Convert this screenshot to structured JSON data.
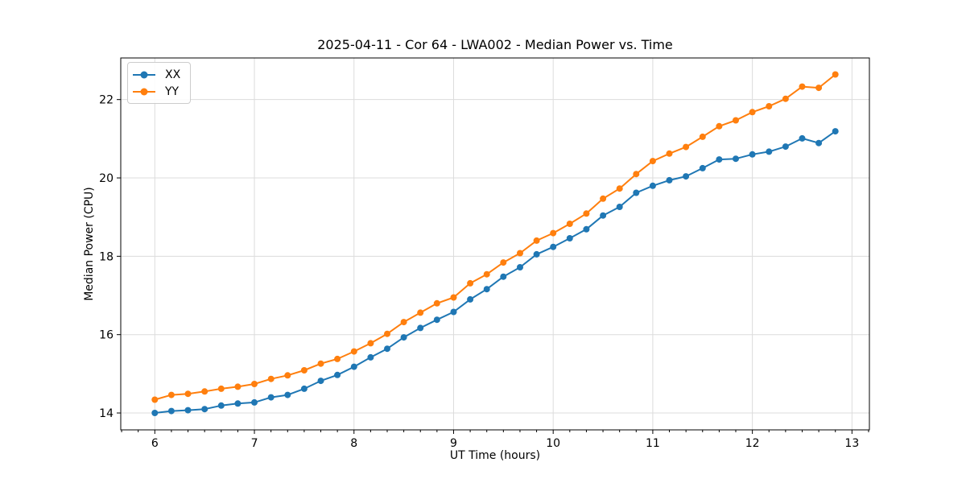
{
  "chart_data": {
    "type": "line",
    "title": "2025-04-11 - Cor 64 - LWA002 - Median Power vs. Time",
    "xlabel": "UT Time (hours)",
    "ylabel": "Median Power (CPU)",
    "xlim": [
      5.658,
      13.175
    ],
    "ylim": [
      13.569,
      23.062
    ],
    "x_ticks": [
      6,
      7,
      8,
      9,
      10,
      11,
      12,
      13
    ],
    "y_ticks": [
      14,
      16,
      18,
      20,
      22
    ],
    "x_minor_tick_step": 0.1667,
    "grid": true,
    "legend_position": "upper-left",
    "x": [
      6.0,
      6.1667,
      6.3333,
      6.5,
      6.6667,
      6.8333,
      7.0,
      7.1667,
      7.3333,
      7.5,
      7.6667,
      7.8333,
      8.0,
      8.1667,
      8.3333,
      8.5,
      8.6667,
      8.8333,
      9.0,
      9.1667,
      9.3333,
      9.5,
      9.6667,
      9.8333,
      10.0,
      10.1667,
      10.3333,
      10.5,
      10.6667,
      10.8333,
      11.0,
      11.1667,
      11.3333,
      11.5,
      11.6667,
      11.8333,
      12.0,
      12.1667,
      12.3333,
      12.5,
      12.6667,
      12.8333
    ],
    "series": [
      {
        "name": "XX",
        "color": "#1f77b4",
        "marker": "circle",
        "values": [
          14.0,
          14.05,
          14.07,
          14.1,
          14.19,
          14.24,
          14.27,
          14.4,
          14.46,
          14.62,
          14.82,
          14.97,
          15.18,
          15.42,
          15.64,
          15.93,
          16.17,
          16.38,
          16.58,
          16.9,
          17.16,
          17.48,
          17.72,
          18.05,
          18.24,
          18.46,
          18.69,
          19.04,
          19.26,
          19.62,
          19.8,
          19.94,
          20.04,
          20.25,
          20.47,
          20.49,
          20.6,
          20.67,
          20.8,
          21.01,
          20.89,
          21.19
        ]
      },
      {
        "name": "YY",
        "color": "#ff7f0e",
        "marker": "circle",
        "values": [
          14.34,
          14.46,
          14.49,
          14.55,
          14.62,
          14.67,
          14.74,
          14.87,
          14.96,
          15.09,
          15.26,
          15.38,
          15.57,
          15.78,
          16.02,
          16.32,
          16.56,
          16.8,
          16.95,
          17.31,
          17.54,
          17.84,
          18.08,
          18.4,
          18.59,
          18.83,
          19.09,
          19.47,
          19.73,
          20.1,
          20.43,
          20.62,
          20.79,
          21.05,
          21.32,
          21.47,
          21.68,
          21.83,
          22.02,
          22.33,
          22.3,
          22.64
        ]
      }
    ],
    "style": {
      "grid_color": "#dcdcdc",
      "spine_color": "#000000",
      "text_color": "#000000",
      "line_width": 2,
      "marker_radius": 4
    }
  }
}
